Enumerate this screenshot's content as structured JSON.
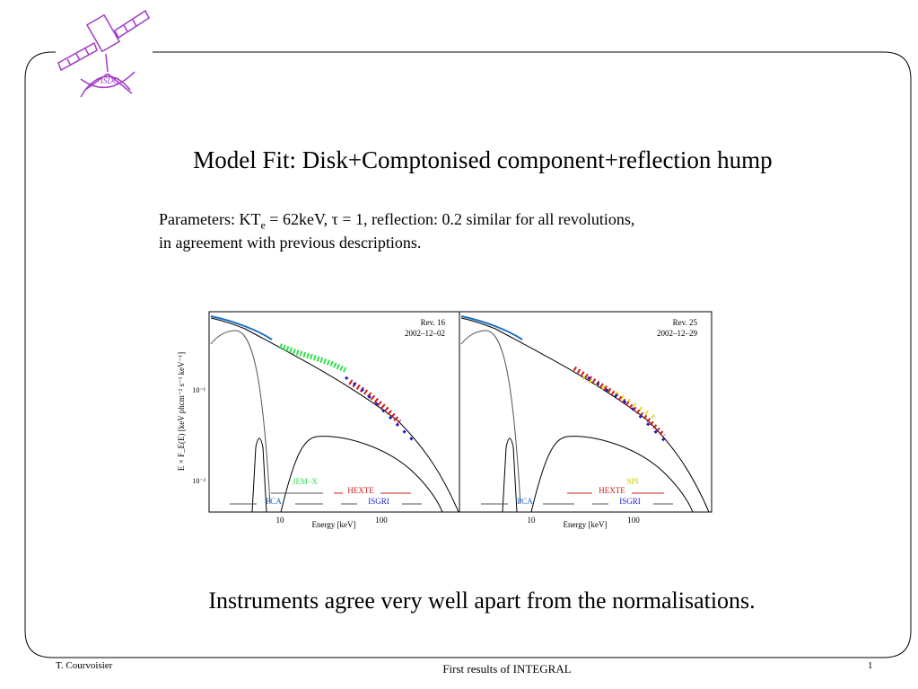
{
  "header": {
    "logo_text": "ISDC"
  },
  "title": "Model Fit: Disk+Comptonised component+reflection hump",
  "parameters": {
    "line1_pre": "Parameters: KT",
    "subscript": "e",
    "line1_post": " = 62keV, τ = 1, reflection: 0.2 similar for all revolutions,",
    "line2": "in agreement with previous descriptions."
  },
  "figure": {
    "y_axis_label": "E × F_E(E) [keV phcm⁻² s⁻¹ keV⁻¹]",
    "y_ticks": [
      "10⁻¹",
      "10⁻²"
    ],
    "panels": [
      {
        "rev": "Rev. 16",
        "date": "2002–12–02",
        "instruments": [
          "JEM–X",
          "HEXTE",
          "PCA",
          "ISGRI"
        ],
        "x_label": "Energy [keV]",
        "x_ticks": [
          "10",
          "100"
        ]
      },
      {
        "rev": "Rev. 25",
        "date": "2002–12–29",
        "instruments": [
          "SPI",
          "HEXTE",
          "PCA",
          "ISGRI"
        ],
        "x_label": "Energy [keV]",
        "x_ticks": [
          "10",
          "100"
        ]
      }
    ]
  },
  "conclusion": "Instruments agree very well apart from the normalisations.",
  "footer": {
    "author": "T. Courvoisier",
    "center": "First results of INTEGRAL",
    "page": "1"
  }
}
